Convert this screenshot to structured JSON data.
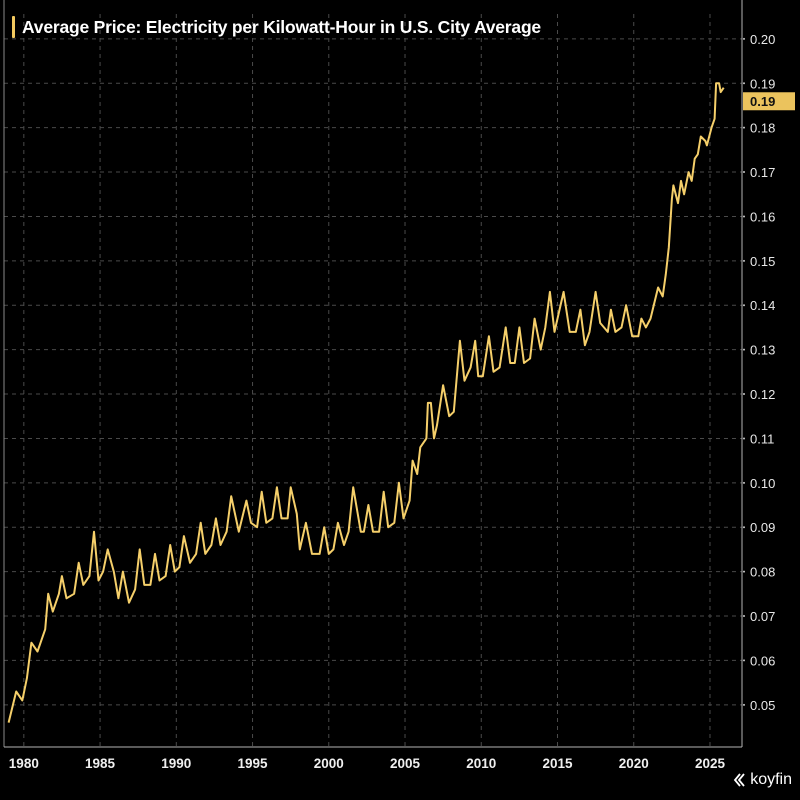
{
  "chart_data": {
    "type": "line",
    "title": "Average Price: Electricity per Kilowatt-Hour in U.S. City Average",
    "xlabel": "",
    "ylabel": "",
    "xlim": [
      1978.7,
      2027.1
    ],
    "ylim": [
      0.0405,
      0.2056
    ],
    "x_ticks": [
      "1980",
      "1985",
      "1990",
      "1995",
      "2000",
      "2005",
      "2010",
      "2015",
      "2020",
      "2025"
    ],
    "y_ticks": [
      "0.05",
      "0.06",
      "0.07",
      "0.08",
      "0.09",
      "0.10",
      "0.11",
      "0.12",
      "0.13",
      "0.14",
      "0.15",
      "0.16",
      "0.17",
      "0.18",
      "0.19",
      "0.20"
    ],
    "y_axis_side": "right",
    "grid": true,
    "line_color": "#f5cf6a",
    "last_value_label": "0.19",
    "series": [
      {
        "points": [
          [
            1979.0,
            0.046
          ],
          [
            1979.5,
            0.053
          ],
          [
            1979.9,
            0.051
          ],
          [
            1980.2,
            0.056
          ],
          [
            1980.5,
            0.064
          ],
          [
            1980.9,
            0.062
          ],
          [
            1981.4,
            0.067
          ],
          [
            1981.6,
            0.075
          ],
          [
            1981.9,
            0.071
          ],
          [
            1982.3,
            0.075
          ],
          [
            1982.5,
            0.079
          ],
          [
            1982.8,
            0.074
          ],
          [
            1983.3,
            0.075
          ],
          [
            1983.6,
            0.082
          ],
          [
            1983.9,
            0.077
          ],
          [
            1984.3,
            0.079
          ],
          [
            1984.6,
            0.089
          ],
          [
            1984.9,
            0.078
          ],
          [
            1985.2,
            0.08
          ],
          [
            1985.5,
            0.085
          ],
          [
            1985.9,
            0.08
          ],
          [
            1986.2,
            0.074
          ],
          [
            1986.5,
            0.08
          ],
          [
            1986.9,
            0.073
          ],
          [
            1987.3,
            0.076
          ],
          [
            1987.6,
            0.085
          ],
          [
            1987.9,
            0.077
          ],
          [
            1988.3,
            0.077
          ],
          [
            1988.6,
            0.084
          ],
          [
            1988.9,
            0.078
          ],
          [
            1989.3,
            0.079
          ],
          [
            1989.6,
            0.086
          ],
          [
            1989.9,
            0.08
          ],
          [
            1990.2,
            0.081
          ],
          [
            1990.5,
            0.088
          ],
          [
            1990.9,
            0.082
          ],
          [
            1991.3,
            0.084
          ],
          [
            1991.6,
            0.091
          ],
          [
            1991.9,
            0.084
          ],
          [
            1992.3,
            0.086
          ],
          [
            1992.6,
            0.092
          ],
          [
            1992.9,
            0.086
          ],
          [
            1993.3,
            0.089
          ],
          [
            1993.6,
            0.097
          ],
          [
            1994.1,
            0.089
          ],
          [
            1994.6,
            0.096
          ],
          [
            1994.9,
            0.091
          ],
          [
            1995.3,
            0.09
          ],
          [
            1995.6,
            0.098
          ],
          [
            1995.9,
            0.091
          ],
          [
            1996.3,
            0.092
          ],
          [
            1996.6,
            0.099
          ],
          [
            1996.9,
            0.092
          ],
          [
            1997.3,
            0.092
          ],
          [
            1997.5,
            0.099
          ],
          [
            1997.9,
            0.093
          ],
          [
            1998.1,
            0.085
          ],
          [
            1998.5,
            0.091
          ],
          [
            1998.9,
            0.084
          ],
          [
            1999.4,
            0.084
          ],
          [
            1999.7,
            0.09
          ],
          [
            2000.0,
            0.084
          ],
          [
            2000.3,
            0.085
          ],
          [
            2000.6,
            0.091
          ],
          [
            2001.0,
            0.086
          ],
          [
            2001.3,
            0.089
          ],
          [
            2001.6,
            0.099
          ],
          [
            2002.1,
            0.089
          ],
          [
            2002.3,
            0.089
          ],
          [
            2002.6,
            0.095
          ],
          [
            2002.9,
            0.089
          ],
          [
            2003.3,
            0.089
          ],
          [
            2003.6,
            0.098
          ],
          [
            2003.9,
            0.09
          ],
          [
            2004.3,
            0.091
          ],
          [
            2004.6,
            0.1
          ],
          [
            2004.9,
            0.092
          ],
          [
            2005.3,
            0.096
          ],
          [
            2005.5,
            0.105
          ],
          [
            2005.8,
            0.102
          ],
          [
            2006.0,
            0.108
          ],
          [
            2006.4,
            0.11
          ],
          [
            2006.5,
            0.118
          ],
          [
            2006.7,
            0.118
          ],
          [
            2006.9,
            0.11
          ],
          [
            2007.1,
            0.113
          ],
          [
            2007.5,
            0.122
          ],
          [
            2007.9,
            0.115
          ],
          [
            2008.2,
            0.116
          ],
          [
            2008.6,
            0.132
          ],
          [
            2008.9,
            0.123
          ],
          [
            2009.3,
            0.126
          ],
          [
            2009.6,
            0.132
          ],
          [
            2009.8,
            0.124
          ],
          [
            2010.1,
            0.124
          ],
          [
            2010.5,
            0.133
          ],
          [
            2010.8,
            0.125
          ],
          [
            2011.2,
            0.126
          ],
          [
            2011.6,
            0.135
          ],
          [
            2011.9,
            0.127
          ],
          [
            2012.2,
            0.127
          ],
          [
            2012.5,
            0.135
          ],
          [
            2012.8,
            0.127
          ],
          [
            2013.2,
            0.128
          ],
          [
            2013.5,
            0.137
          ],
          [
            2013.9,
            0.13
          ],
          [
            2014.2,
            0.135
          ],
          [
            2014.5,
            0.143
          ],
          [
            2014.8,
            0.134
          ],
          [
            2015.0,
            0.137
          ],
          [
            2015.4,
            0.143
          ],
          [
            2015.8,
            0.134
          ],
          [
            2016.2,
            0.134
          ],
          [
            2016.5,
            0.139
          ],
          [
            2016.8,
            0.131
          ],
          [
            2017.1,
            0.134
          ],
          [
            2017.5,
            0.143
          ],
          [
            2017.8,
            0.136
          ],
          [
            2018.3,
            0.134
          ],
          [
            2018.5,
            0.139
          ],
          [
            2018.8,
            0.134
          ],
          [
            2019.2,
            0.135
          ],
          [
            2019.5,
            0.14
          ],
          [
            2019.9,
            0.133
          ],
          [
            2020.3,
            0.133
          ],
          [
            2020.5,
            0.137
          ],
          [
            2020.8,
            0.135
          ],
          [
            2021.1,
            0.137
          ],
          [
            2021.6,
            0.144
          ],
          [
            2021.9,
            0.142
          ],
          [
            2022.1,
            0.147
          ],
          [
            2022.3,
            0.153
          ],
          [
            2022.5,
            0.164
          ],
          [
            2022.6,
            0.167
          ],
          [
            2022.9,
            0.163
          ],
          [
            2023.1,
            0.168
          ],
          [
            2023.3,
            0.165
          ],
          [
            2023.6,
            0.17
          ],
          [
            2023.8,
            0.168
          ],
          [
            2024.0,
            0.173
          ],
          [
            2024.2,
            0.174
          ],
          [
            2024.4,
            0.178
          ],
          [
            2024.7,
            0.177
          ],
          [
            2024.8,
            0.176
          ],
          [
            2025.1,
            0.18
          ],
          [
            2025.3,
            0.182
          ],
          [
            2025.4,
            0.19
          ],
          [
            2025.6,
            0.19
          ],
          [
            2025.7,
            0.188
          ],
          [
            2025.9,
            0.189
          ]
        ]
      }
    ]
  },
  "branding": {
    "logo_text": "koyfin"
  }
}
